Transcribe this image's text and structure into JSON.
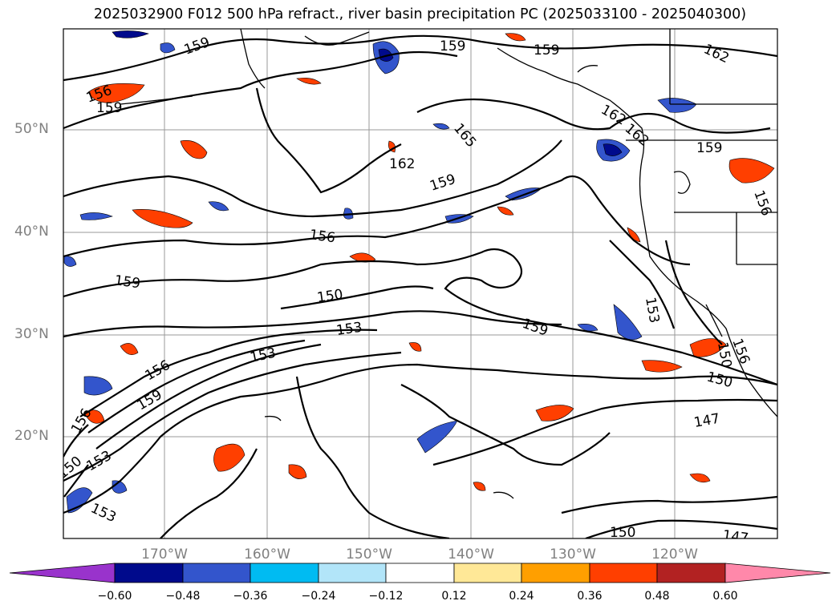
{
  "title": "2025032900 F012 500 hPa refract., river basin precipitation PC (2025033100 - 2025040300)",
  "lat_labels": [
    "50°N",
    "40°N",
    "30°N",
    "20°N"
  ],
  "lon_labels": [
    "170°W",
    "160°W",
    "150°W",
    "140°W",
    "130°W",
    "120°W"
  ],
  "colorbar": {
    "tick_labels": [
      "−0.60",
      "−0.48",
      "−0.36",
      "−0.24",
      "−0.12",
      "0.12",
      "0.24",
      "0.36",
      "0.48",
      "0.60"
    ],
    "colors": [
      "#9933cc",
      "#000a8c",
      "#3355cc",
      "#00bbf2",
      "#b2e5f9",
      "#ffffff",
      "#ffe897",
      "#ff9f00",
      "#ff3f00",
      "#b22222",
      "#ff88aa"
    ]
  },
  "contour_labels": [
    "159",
    "159",
    "159",
    "162",
    "156",
    "159",
    "165",
    "162",
    "162",
    "159",
    "162",
    "159",
    "156",
    "156",
    "159",
    "150",
    "153",
    "159",
    "153",
    "150",
    "156",
    "153",
    "159",
    "156",
    "147",
    "150",
    "153",
    "150",
    "153",
    "150",
    "147",
    "156"
  ]
}
